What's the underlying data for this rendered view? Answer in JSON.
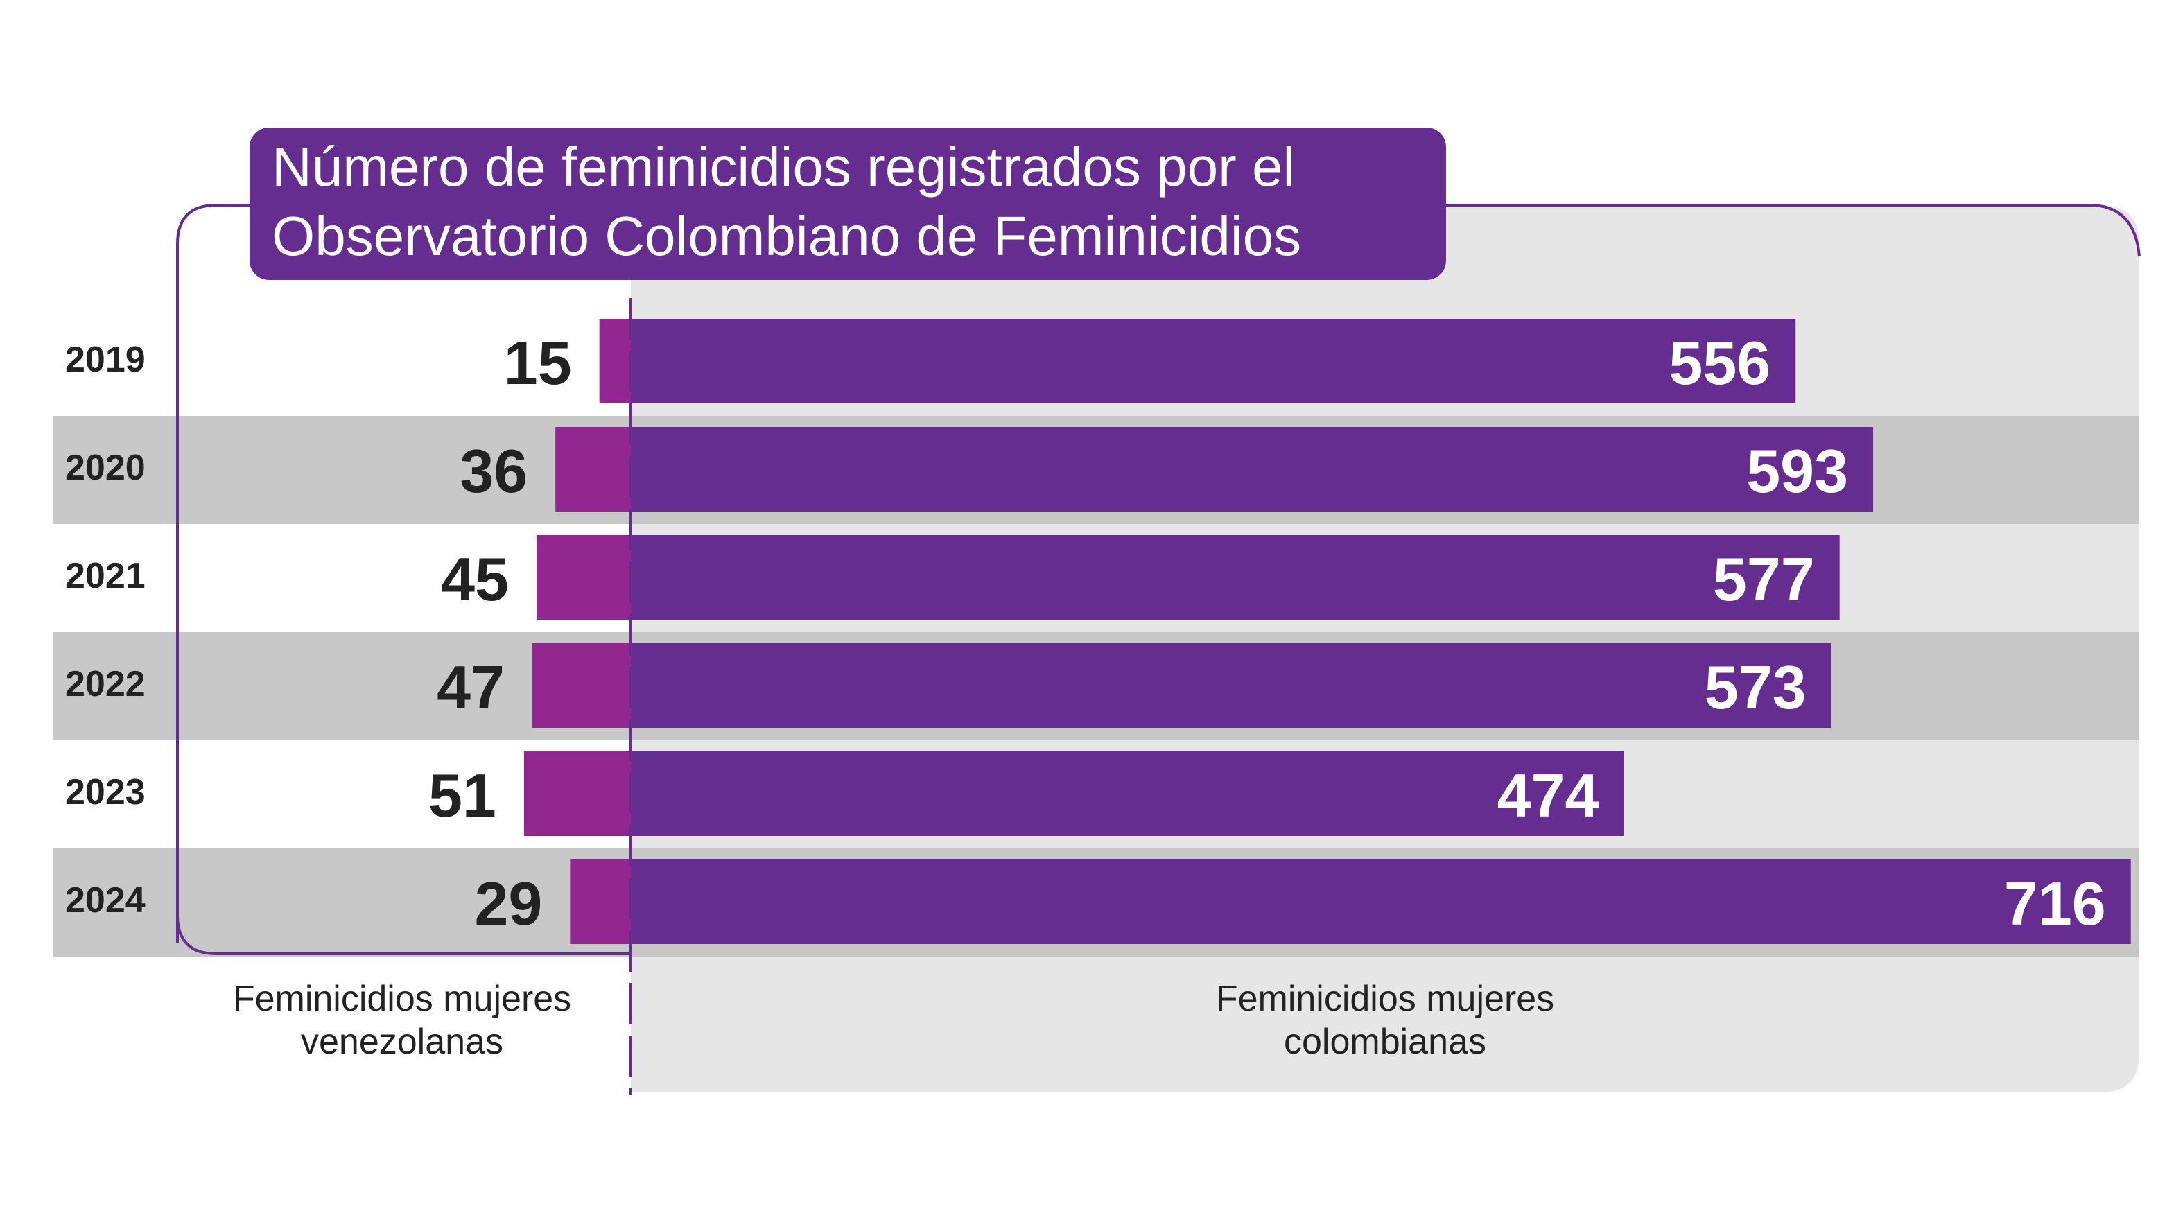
{
  "chart_data": {
    "type": "bar",
    "title": "Número de feminicidios registrados por el Observatorio Colombiano de Feminicidios",
    "categories": [
      "2019",
      "2020",
      "2021",
      "2022",
      "2023",
      "2024"
    ],
    "series": [
      {
        "name": "Feminicidios mujeres venezolanas",
        "color": "#92278f",
        "values": [
          15,
          36,
          45,
          47,
          51,
          29
        ]
      },
      {
        "name": "Feminicidios mujeres colombianas",
        "color": "#652d90",
        "values": [
          556,
          593,
          577,
          573,
          474,
          716
        ]
      }
    ]
  }
}
